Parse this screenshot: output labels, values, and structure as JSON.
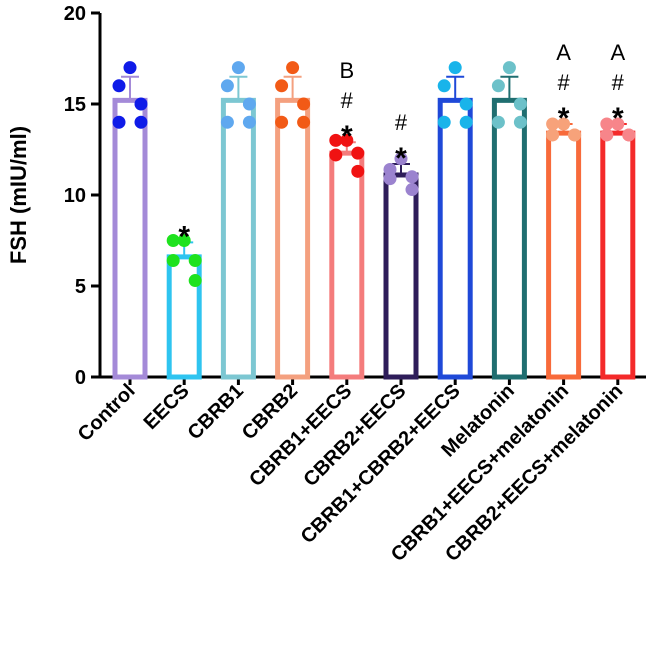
{
  "chart_data": {
    "type": "bar",
    "ylabel": "FSH (mIU/ml)",
    "ylim": [
      0,
      20
    ],
    "yticks": [
      0,
      5,
      10,
      15,
      20
    ],
    "grid": false,
    "legend": "none",
    "categories": [
      "Control",
      "EECS",
      "CBRB1",
      "CBRB2",
      "CBRB1+EECS",
      "CBRB2+EECS",
      "CBRB1+CBRB2+EECS",
      "Melatonin",
      "CBRB1+EECS+melatonin",
      "CBRB2+EECS+melatonin"
    ],
    "values": [
      15.2,
      6.6,
      15.2,
      15.2,
      12.3,
      11.1,
      15.2,
      15.2,
      13.4,
      13.4
    ],
    "error": [
      1.3,
      0.8,
      1.3,
      1.3,
      0.6,
      0.6,
      1.3,
      1.3,
      0.5,
      0.5
    ],
    "points": [
      [
        17,
        16,
        15,
        14,
        14
      ],
      [
        7.5,
        7.5,
        6.4,
        6.4,
        5.3
      ],
      [
        17,
        16,
        15,
        14,
        14
      ],
      [
        17,
        16,
        15,
        14,
        14
      ],
      [
        13,
        13,
        12.3,
        12.2,
        11.3
      ],
      [
        12,
        11.4,
        11,
        10.9,
        10.3
      ],
      [
        17,
        16,
        15,
        14,
        14
      ],
      [
        17,
        16,
        15,
        14,
        14
      ],
      [
        13.9,
        13.9,
        13.3,
        13.3,
        13.3
      ],
      [
        13.9,
        13.9,
        13.3,
        13.3,
        13.3
      ]
    ],
    "annotations": [
      [],
      [
        "*"
      ],
      [],
      [],
      [
        "*",
        "#",
        "B"
      ],
      [
        "*",
        "#"
      ],
      [],
      [],
      [
        "*",
        "#",
        "A"
      ],
      [
        "*",
        "#",
        "A"
      ]
    ],
    "bar_colors": [
      "#a48ad8",
      "#2ec4f0",
      "#7cc7d2",
      "#f4a07f",
      "#f47c7c",
      "#2e1d5a",
      "#1f49d8",
      "#1f6e70",
      "#f86a3a",
      "#f42a2a"
    ],
    "point_colors": [
      "#0f1be8",
      "#1ee21e",
      "#5fa8ef",
      "#f25a16",
      "#f01212",
      "#9b83cf",
      "#19b4ea",
      "#6cc1c9",
      "#f7a27a",
      "#f7858a"
    ]
  }
}
